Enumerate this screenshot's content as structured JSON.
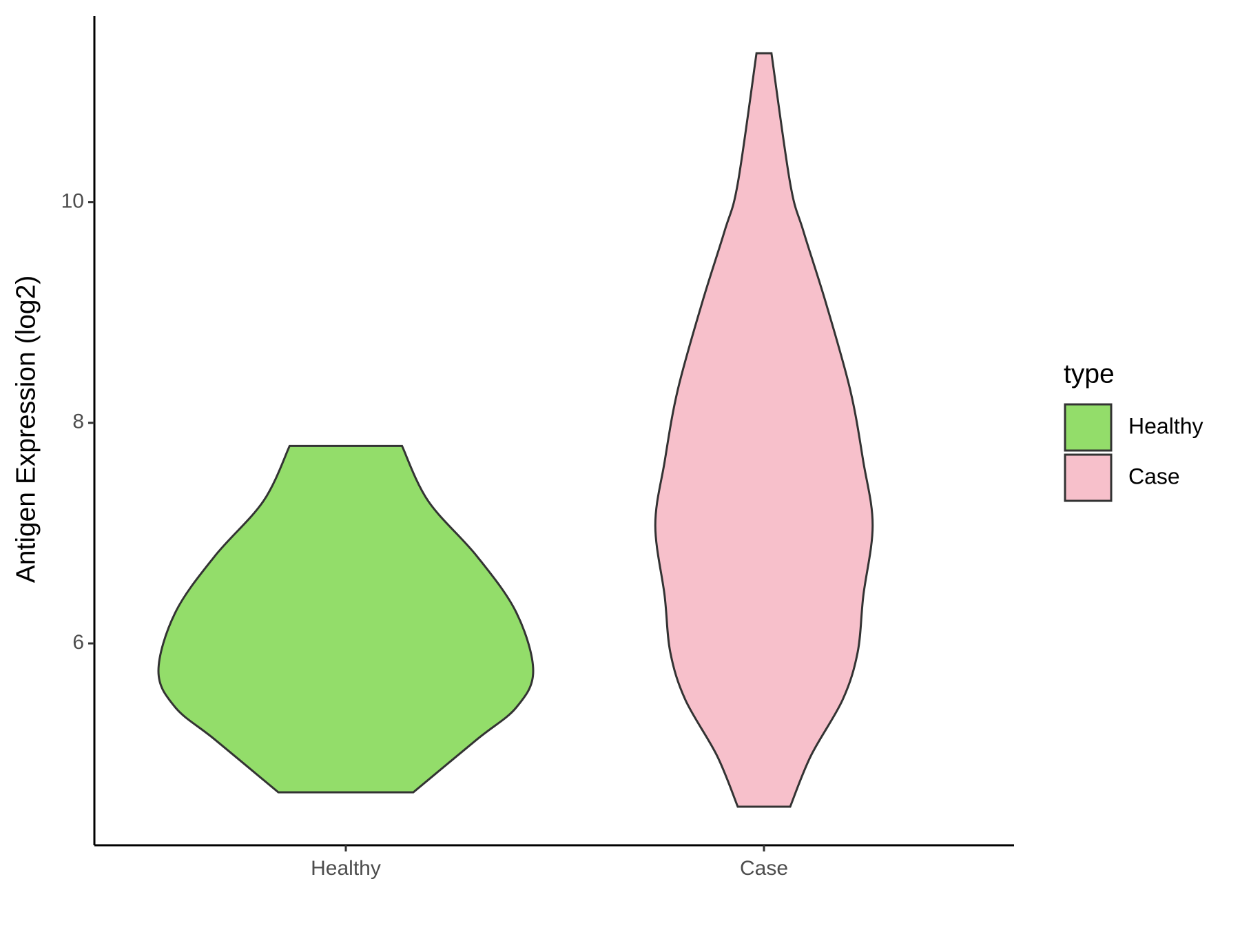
{
  "chart_data": {
    "type": "violin",
    "y_label": "Antigen Expression (log2)",
    "categories": [
      "Healthy",
      "Case"
    ],
    "legend_title": "type",
    "series": [
      {
        "name": "Healthy",
        "color": "#93dd6a",
        "y": [
          4.65,
          5.13,
          5.42,
          5.75,
          6.28,
          6.79,
          7.29,
          7.79
        ],
        "density": [
          0.36,
          0.7,
          0.91,
          1.0,
          0.91,
          0.7,
          0.44,
          0.3
        ]
      },
      {
        "name": "Case",
        "color": "#f7c0cb",
        "y": [
          4.52,
          4.98,
          5.49,
          5.92,
          6.43,
          7.07,
          7.65,
          8.3,
          9.09,
          9.74,
          10.17,
          11.35
        ],
        "density": [
          0.14,
          0.25,
          0.42,
          0.5,
          0.53,
          0.58,
          0.53,
          0.46,
          0.33,
          0.21,
          0.14,
          0.04
        ]
      }
    ],
    "ylim": [
      4.17,
      11.69
    ],
    "yticks": [
      6,
      8,
      10
    ]
  }
}
